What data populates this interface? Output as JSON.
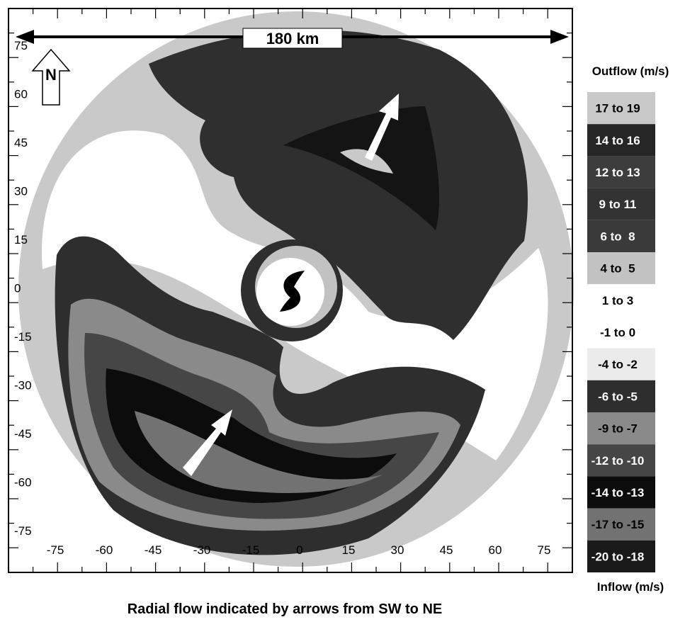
{
  "scale_bar": "180 km",
  "north": "N",
  "axes": {
    "y_labels": [
      "75",
      "60",
      "45",
      "30",
      "15",
      "0",
      "-15",
      "-30",
      "-45",
      "-60",
      "-75"
    ],
    "x_labels": [
      "-75",
      "-60",
      "-45",
      "-30",
      "-15",
      "0",
      "15",
      "30",
      "45",
      "60",
      "75"
    ]
  },
  "legend": {
    "top_title": "Outflow (m/s)",
    "bottom_title": "Inflow (m/s)",
    "items": [
      {
        "label": "17 to 19",
        "color": "#c9c9c9"
      },
      {
        "label": "14 to 16",
        "color": "#262626"
      },
      {
        "label": "12 to 13",
        "color": "#3d3d3d"
      },
      {
        "label": "9 to 11",
        "color": "#333333"
      },
      {
        "label": "6 to  8",
        "color": "#3a3a3a"
      },
      {
        "label": "4 to  5",
        "color": "#c2c2c2"
      },
      {
        "label": "1 to 3",
        "color": "#ffffff"
      },
      {
        "label": "-1 to 0",
        "color": "#ffffff"
      },
      {
        "label": "-4 to -2",
        "color": "#ebebeb"
      },
      {
        "label": "-6 to -5",
        "color": "#2e2e2e"
      },
      {
        "label": "-9 to -7",
        "color": "#8a8a8a"
      },
      {
        "label": "-12 to -10",
        "color": "#464646"
      },
      {
        "label": "-14 to -13",
        "color": "#0c0c0c"
      },
      {
        "label": "-17 to -15",
        "color": "#727272"
      },
      {
        "label": "-20 to -18",
        "color": "#1a1a1a"
      }
    ]
  },
  "caption": "Radial flow indicated by arrows from SW to NE"
}
